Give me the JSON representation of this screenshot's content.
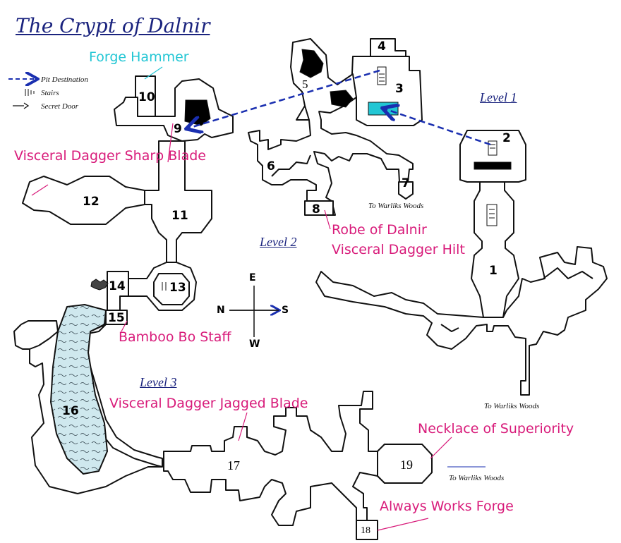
{
  "map": {
    "title": "The Crypt of Dalnir",
    "colors": {
      "ink": "#111111",
      "title": "#1a237e",
      "legend_blue": "#1a2fb0",
      "item_pink": "#d81b7a",
      "item_cyan": "#22c6d4",
      "water": "#cfe8ee",
      "wall_fill": "#ffffff"
    }
  },
  "legend": {
    "pit_destination": "Pit Destination",
    "stairs": "Stairs",
    "secret_door": "Secret Door"
  },
  "levels": {
    "level1": "Level 1",
    "level2": "Level 2",
    "level3": "Level 3"
  },
  "compass": {
    "e": "E",
    "n": "N",
    "s": "S",
    "w": "W"
  },
  "rooms": [
    "1",
    "2",
    "3",
    "4",
    "5",
    "6",
    "7",
    "8",
    "9",
    "10",
    "11",
    "12",
    "13",
    "14",
    "15",
    "16",
    "17",
    "18",
    "19"
  ],
  "items": {
    "forge_hammer": "Forge Hammer",
    "sharp_blade": "Visceral Dagger Sharp Blade",
    "robe": "Robe of Dalnir",
    "hilt": "Visceral Dagger Hilt",
    "bo_staff": "Bamboo Bo Staff",
    "jagged_blade": "Visceral Dagger Jagged Blade",
    "necklace": "Necklace of Superiority",
    "forge": "Always Works Forge"
  },
  "exits": {
    "woods_a": "To Warliks Woods",
    "woods_b": "To Warliks Woods",
    "woods_c": "To Warliks Woods"
  }
}
